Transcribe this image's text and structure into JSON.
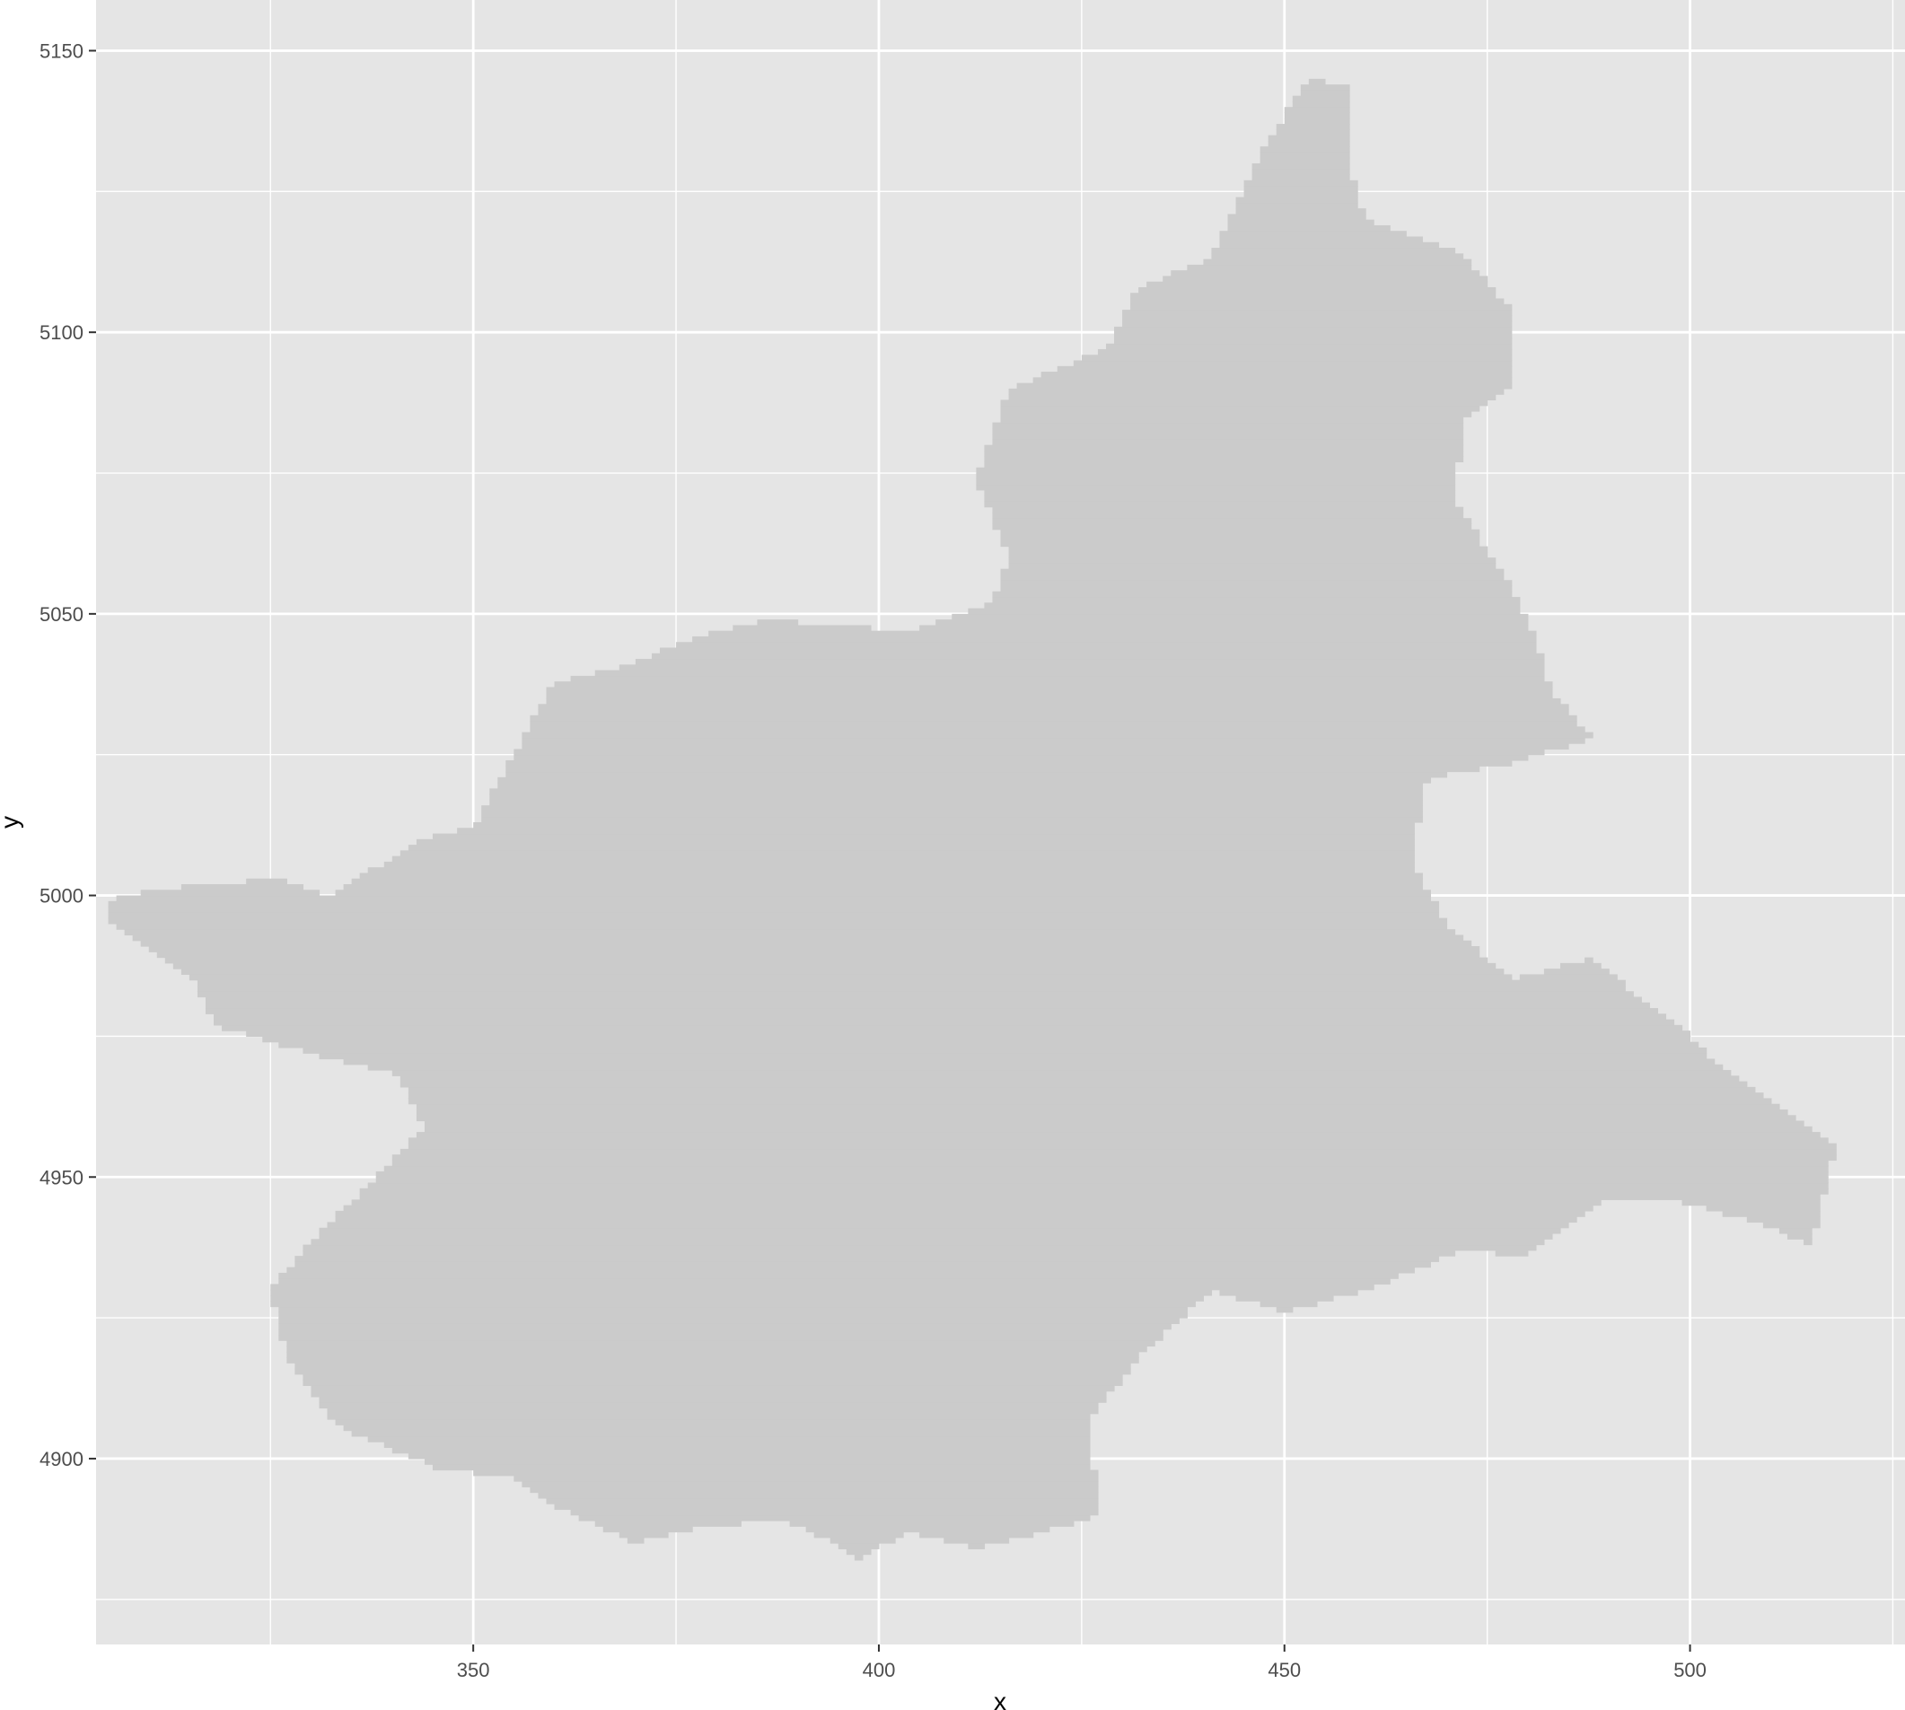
{
  "chart_data": {
    "type": "raster-map",
    "title": "",
    "xlabel": "x",
    "ylabel": "y",
    "xlim": [
      303.5,
      526.5
    ],
    "ylim": [
      4867,
      5159
    ],
    "x_ticks": [
      350,
      400,
      450,
      500
    ],
    "y_ticks": [
      4900,
      4950,
      5000,
      5050,
      5100,
      5150
    ],
    "x_minor": [
      325,
      375,
      425,
      475,
      525
    ],
    "y_minor": [
      4875,
      4925,
      4975,
      5025,
      5075,
      5125
    ],
    "grid": true,
    "panel_color": "#e5e5e5",
    "grid_color": "#ffffff",
    "fill_color": "#cbcbcb",
    "region_outline": [
      [
        305,
        4999
      ],
      [
        310,
        5001
      ],
      [
        326,
        5003
      ],
      [
        332,
        5000
      ],
      [
        344,
        5010
      ],
      [
        350,
        5012
      ],
      [
        360,
        5038
      ],
      [
        367,
        5040
      ],
      [
        378,
        5046
      ],
      [
        386,
        5049
      ],
      [
        404,
        5047
      ],
      [
        414,
        5052
      ],
      [
        416,
        5060
      ],
      [
        412,
        5074
      ],
      [
        416,
        5090
      ],
      [
        428,
        5097
      ],
      [
        432,
        5108
      ],
      [
        441,
        5113
      ],
      [
        448,
        5134
      ],
      [
        453,
        5145
      ],
      [
        458,
        5144
      ],
      [
        458,
        5130
      ],
      [
        460,
        5120
      ],
      [
        472,
        5114
      ],
      [
        478,
        5104
      ],
      [
        478,
        5090
      ],
      [
        472,
        5084
      ],
      [
        471,
        5070
      ],
      [
        478,
        5055
      ],
      [
        481,
        5045
      ],
      [
        483,
        5036
      ],
      [
        488,
        5028
      ],
      [
        477,
        5023
      ],
      [
        471,
        5022
      ],
      [
        467,
        5020
      ],
      [
        466,
        5005
      ],
      [
        470,
        4995
      ],
      [
        478,
        4985
      ],
      [
        488,
        4989
      ],
      [
        492,
        4984
      ],
      [
        500,
        4975
      ],
      [
        505,
        4968
      ],
      [
        512,
        4962
      ],
      [
        518,
        4956
      ],
      [
        515,
        4938
      ],
      [
        508,
        4942
      ],
      [
        498,
        4946
      ],
      [
        490,
        4946
      ],
      [
        480,
        4936
      ],
      [
        472,
        4937
      ],
      [
        460,
        4930
      ],
      [
        450,
        4926
      ],
      [
        441,
        4930
      ],
      [
        432,
        4918
      ],
      [
        426,
        4907
      ],
      [
        427,
        4890
      ],
      [
        418,
        4886
      ],
      [
        412,
        4884
      ],
      [
        404,
        4887
      ],
      [
        397,
        4882
      ],
      [
        395,
        4885
      ],
      [
        388,
        4889
      ],
      [
        378,
        4888
      ],
      [
        370,
        4885
      ],
      [
        361,
        4891
      ],
      [
        354,
        4897
      ],
      [
        346,
        4898
      ],
      [
        333,
        4906
      ],
      [
        327,
        4918
      ],
      [
        325,
        4930
      ],
      [
        331,
        4940
      ],
      [
        338,
        4950
      ],
      [
        344,
        4959
      ],
      [
        341,
        4968
      ],
      [
        330,
        4972
      ],
      [
        318,
        4977
      ],
      [
        316,
        4984
      ],
      [
        309,
        4992
      ],
      [
        305,
        4995
      ]
    ]
  }
}
